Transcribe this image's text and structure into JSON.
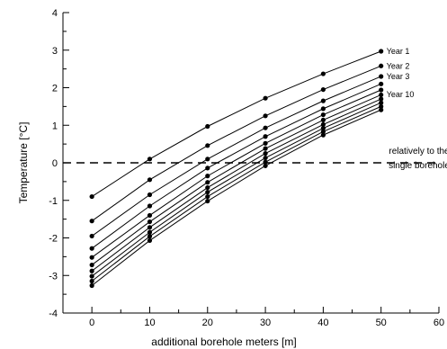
{
  "chart_data": {
    "type": "line",
    "xlabel": "additional borehole meters [m]",
    "ylabel": "Temperature [°C]",
    "xlim": [
      -5,
      60
    ],
    "ylim": [
      -4,
      4
    ],
    "x_ticks": [
      0,
      10,
      20,
      30,
      40,
      50,
      60
    ],
    "y_ticks": [
      -4,
      -3,
      -2,
      -1,
      0,
      1,
      2,
      3,
      4
    ],
    "x": [
      0,
      10,
      20,
      30,
      40,
      50
    ],
    "grid": false,
    "legend": "none",
    "series": [
      {
        "name": "Year 1",
        "values": [
          -0.9,
          0.1,
          0.97,
          1.72,
          2.37,
          2.97
        ]
      },
      {
        "name": "Year 2",
        "values": [
          -1.55,
          -0.45,
          0.46,
          1.25,
          1.95,
          2.58
        ]
      },
      {
        "name": "Year 3",
        "values": [
          -1.95,
          -0.85,
          0.1,
          0.93,
          1.65,
          2.3
        ]
      },
      {
        "name": "",
        "values": [
          -2.28,
          -1.15,
          -0.14,
          0.7,
          1.44,
          2.1
        ]
      },
      {
        "name": "",
        "values": [
          -2.52,
          -1.4,
          -0.35,
          0.52,
          1.28,
          1.94
        ]
      },
      {
        "name": "",
        "values": [
          -2.72,
          -1.57,
          -0.52,
          0.38,
          1.14,
          1.81
        ]
      },
      {
        "name": "",
        "values": [
          -2.88,
          -1.72,
          -0.66,
          0.25,
          1.02,
          1.7
        ]
      },
      {
        "name": "",
        "values": [
          -3.02,
          -1.85,
          -0.78,
          0.13,
          0.92,
          1.6
        ]
      },
      {
        "name": "",
        "values": [
          -3.15,
          -1.96,
          -0.9,
          0.02,
          0.83,
          1.5
        ]
      },
      {
        "name": "Year 10",
        "values": [
          -3.27,
          -2.07,
          -1.02,
          -0.08,
          0.74,
          1.41
        ]
      }
    ],
    "reference_line": {
      "y": 0,
      "style": "dashed",
      "label_line1": "relatively to the",
      "label_line2": "single borehole"
    }
  }
}
